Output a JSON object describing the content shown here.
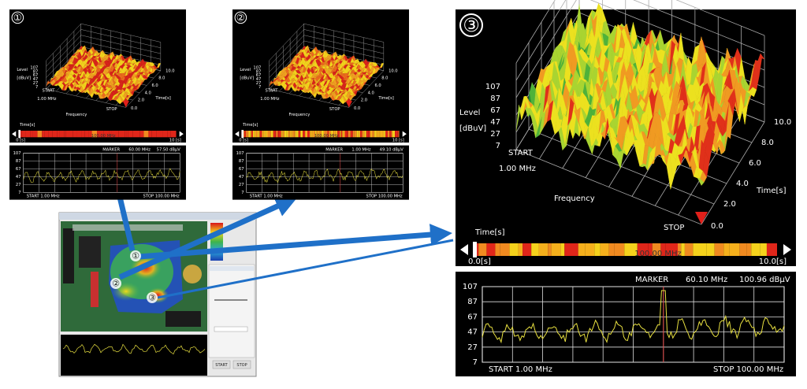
{
  "panels": [
    {
      "badge": "①",
      "level_label": "Level",
      "level_unit": "[dBuV]",
      "level_ticks": [
        "107",
        "87",
        "67",
        "47",
        "27",
        "7"
      ],
      "start_label": "START",
      "start_freq": "1.00 MHz",
      "frequency_label": "Frequency",
      "stop_label": "STOP",
      "time_label": "Time[s]",
      "time_ticks": [
        "0.0",
        "2.0",
        "4.0",
        "6.0",
        "8.0",
        "10.0"
      ],
      "timebar_label": "Time[s]",
      "timebar_start": "0 [s]",
      "timebar_center": "100.00 MHz",
      "timebar_end": "10 [s]",
      "marker_label": "MARKER",
      "marker_freq": "60.00 MHz",
      "marker_level": "57.50 dBμV",
      "spectrum_ticks": [
        "107",
        "87",
        "67",
        "47",
        "27",
        "7"
      ],
      "spectrum_start": "START 1.00 MHz",
      "spectrum_stop": "STOP 100.00 MHz"
    },
    {
      "badge": "②",
      "level_label": "Level",
      "level_unit": "[dBuV]",
      "level_ticks": [
        "107",
        "87",
        "67",
        "47",
        "27",
        "7"
      ],
      "start_label": "START",
      "start_freq": "1.00 MHz",
      "frequency_label": "Frequency",
      "stop_label": "STOP",
      "time_label": "Time[s]",
      "time_ticks": [
        "0.0",
        "2.0",
        "4.0",
        "6.0",
        "8.0",
        "10.0"
      ],
      "timebar_label": "Time[s]",
      "timebar_start": "0 [s]",
      "timebar_center": "100.00 MHz",
      "timebar_end": "10 [s]",
      "marker_label": "MARKER",
      "marker_freq": "1.00 MHz",
      "marker_level": "49.10 dBμV",
      "spectrum_ticks": [
        "107",
        "87",
        "67",
        "47",
        "27",
        "7"
      ],
      "spectrum_start": "START 1.00 MHz",
      "spectrum_stop": "STOP 100.00 MHz"
    },
    {
      "badge": "③",
      "level_label": "Level",
      "level_unit": "[dBuV]",
      "level_ticks": [
        "107",
        "87",
        "67",
        "47",
        "27",
        "7"
      ],
      "start_label": "START",
      "start_freq": "1.00 MHz",
      "frequency_label": "Frequency",
      "stop_label": "STOP",
      "time_label": "Time[s]",
      "time_ticks": [
        "0.0",
        "2.0",
        "4.0",
        "6.0",
        "8.0",
        "10.0"
      ],
      "timebar_label": "Time[s]",
      "timebar_start": "0.0[s]",
      "timebar_center": "100.00 MHz",
      "timebar_end": "10.0[s]",
      "marker_label": "MARKER",
      "marker_freq": "60.10 MHz",
      "marker_level": "100.96 dBμV",
      "spectrum_ticks": [
        "107",
        "87",
        "67",
        "47",
        "27",
        "7"
      ],
      "spectrum_start": "START 1.00 MHz",
      "spectrum_stop": "STOP 100.00 MHz"
    }
  ],
  "thumbnail": {
    "markers": [
      "①",
      "②",
      "③"
    ],
    "buttons": [
      "START",
      "STOP"
    ]
  }
}
